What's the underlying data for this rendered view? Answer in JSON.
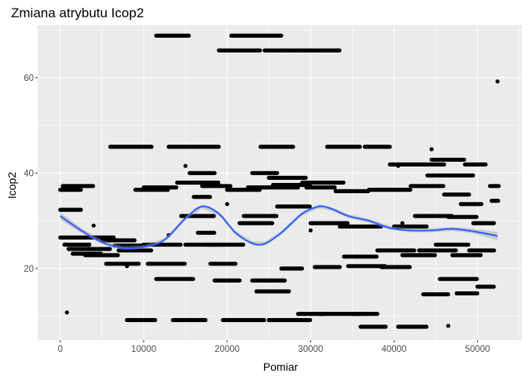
{
  "chart_data": {
    "type": "scatter",
    "title": "Zmiana atrybutu Icop2",
    "xlabel": "Pomiar",
    "ylabel": "Icop2",
    "xlim": [
      -2700,
      55300
    ],
    "ylim": [
      5,
      71
    ],
    "x_ticks": [
      0,
      10000,
      20000,
      30000,
      40000,
      50000
    ],
    "x_tick_labels": [
      "0",
      "10000",
      "20000",
      "30000",
      "40000",
      "50000"
    ],
    "y_ticks": [
      20,
      40,
      60
    ],
    "y_tick_labels": [
      "20",
      "40",
      "60"
    ],
    "grid": true,
    "legend": "none",
    "colors": {
      "panel": "#ebebeb",
      "grid": "#ffffff",
      "points": "#000000",
      "smooth": "#3366ff",
      "band": "#999999"
    },
    "segments": [
      [
        0,
        2500,
        26.5
      ],
      [
        0,
        2500,
        36.5
      ],
      [
        0,
        2500,
        32.3
      ],
      [
        300,
        4000,
        37.3
      ],
      [
        500,
        3500,
        25
      ],
      [
        1000,
        6000,
        24.1
      ],
      [
        1500,
        5000,
        23.1
      ],
      [
        3000,
        7000,
        22.8
      ],
      [
        2500,
        6500,
        26.5
      ],
      [
        5000,
        9000,
        25.9
      ],
      [
        5500,
        9500,
        21
      ],
      [
        6000,
        11000,
        45.5
      ],
      [
        6500,
        10000,
        24.8
      ],
      [
        7000,
        11000,
        23.8
      ],
      [
        8000,
        11500,
        9.2
      ],
      [
        9000,
        13000,
        36.5
      ],
      [
        10000,
        14500,
        25
      ],
      [
        10500,
        15000,
        21
      ],
      [
        10000,
        14000,
        37
      ],
      [
        11500,
        15500,
        68.8
      ],
      [
        11500,
        16000,
        17.8
      ],
      [
        13000,
        19000,
        45.5
      ],
      [
        13500,
        17500,
        9.2
      ],
      [
        14000,
        19000,
        38
      ],
      [
        14500,
        18500,
        31
      ],
      [
        15000,
        19500,
        25
      ],
      [
        15500,
        18500,
        40
      ],
      [
        16000,
        18000,
        35
      ],
      [
        16500,
        18500,
        27.5
      ],
      [
        17000,
        20500,
        37.3
      ],
      [
        17500,
        22000,
        25
      ],
      [
        18000,
        21000,
        21
      ],
      [
        18500,
        21500,
        17.5
      ],
      [
        19000,
        24000,
        65.7
      ],
      [
        19500,
        24500,
        9.2
      ],
      [
        20500,
        26500,
        68.8
      ],
      [
        20000,
        24000,
        36.5
      ],
      [
        21500,
        25500,
        29.5
      ],
      [
        22000,
        26000,
        31
      ],
      [
        22500,
        28500,
        37
      ],
      [
        23000,
        26000,
        40
      ],
      [
        23000,
        27000,
        17.5
      ],
      [
        23500,
        27500,
        15.2
      ],
      [
        24500,
        28000,
        65.7
      ],
      [
        24000,
        28000,
        45.5
      ],
      [
        25000,
        30000,
        9.2
      ],
      [
        25000,
        29500,
        39
      ],
      [
        25500,
        30000,
        37.5
      ],
      [
        26000,
        30000,
        33
      ],
      [
        26500,
        29000,
        20
      ],
      [
        28000,
        33500,
        65.7
      ],
      [
        28500,
        31500,
        10.5
      ],
      [
        29000,
        34000,
        38
      ],
      [
        29500,
        33000,
        37
      ],
      [
        30000,
        34500,
        29.5
      ],
      [
        30500,
        33500,
        20.3
      ],
      [
        31000,
        36000,
        10.5
      ],
      [
        32000,
        36000,
        45.5
      ],
      [
        33000,
        37000,
        36.2
      ],
      [
        33500,
        38500,
        28.8
      ],
      [
        34000,
        38000,
        22.5
      ],
      [
        34500,
        39000,
        20.5
      ],
      [
        35000,
        38000,
        10.5
      ],
      [
        36000,
        39000,
        7.8
      ],
      [
        36500,
        39500,
        45.5
      ],
      [
        37000,
        42000,
        36.5
      ],
      [
        38000,
        42500,
        23.8
      ],
      [
        38500,
        42000,
        20.3
      ],
      [
        39500,
        46000,
        41.8
      ],
      [
        40000,
        44000,
        28.8
      ],
      [
        40500,
        44000,
        7.8
      ],
      [
        41000,
        45000,
        22.8
      ],
      [
        42000,
        46000,
        37.3
      ],
      [
        42500,
        47000,
        31
      ],
      [
        43000,
        47500,
        23.8
      ],
      [
        43500,
        46500,
        14.6
      ],
      [
        44000,
        49500,
        39.5
      ],
      [
        44500,
        48500,
        42.8
      ],
      [
        45000,
        49000,
        25
      ],
      [
        45500,
        50000,
        17.8
      ],
      [
        46000,
        49000,
        35.5
      ],
      [
        46500,
        50000,
        30.8
      ],
      [
        47000,
        50500,
        22.8
      ],
      [
        47500,
        50000,
        14.8
      ],
      [
        48000,
        50500,
        33.5
      ],
      [
        48500,
        51000,
        41.8
      ],
      [
        49000,
        52000,
        23.8
      ],
      [
        49500,
        52000,
        29.5
      ],
      [
        50000,
        52000,
        16.2
      ],
      [
        51500,
        52600,
        37.3
      ],
      [
        51700,
        52600,
        34.2
      ]
    ],
    "points": [
      [
        800,
        10.8
      ],
      [
        52400,
        59.2
      ],
      [
        46500,
        8
      ],
      [
        40500,
        41.5
      ],
      [
        44500,
        45
      ],
      [
        41000,
        29.5
      ],
      [
        30000,
        28
      ],
      [
        20000,
        33.5
      ],
      [
        13000,
        27
      ],
      [
        8000,
        20.5
      ],
      [
        4000,
        29
      ],
      [
        15000,
        41.5
      ]
    ],
    "smooth": {
      "x": [
        0,
        2500,
        5000,
        7500,
        10000,
        12500,
        15000,
        17000,
        19000,
        21000,
        23000,
        24500,
        26500,
        29000,
        31000,
        32500,
        34500,
        37000,
        39500,
        42000,
        44500,
        47000,
        49500,
        52400
      ],
      "y": [
        31,
        28,
        25.5,
        24.3,
        24.5,
        26,
        30.5,
        33,
        31.5,
        27.5,
        25.3,
        25.2,
        27.5,
        31.5,
        33,
        32.5,
        31,
        30,
        28.5,
        28,
        28,
        28.3,
        27.8,
        26.8
      ],
      "band": [
        0.8,
        0.5,
        0.4,
        0.4,
        0.4,
        0.4,
        0.4,
        0.4,
        0.4,
        0.4,
        0.4,
        0.4,
        0.4,
        0.4,
        0.4,
        0.4,
        0.4,
        0.4,
        0.4,
        0.4,
        0.4,
        0.4,
        0.5,
        0.9
      ]
    }
  }
}
